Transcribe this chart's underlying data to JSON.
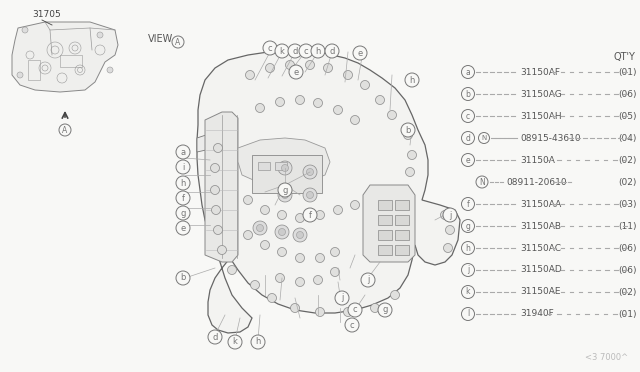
{
  "bg_color": "#f8f8f6",
  "part_number_label": "31705",
  "qty_label": "QT'Y",
  "watermark": "<3 7000^",
  "legend_items": [
    {
      "key": "a",
      "part": "31150AF",
      "qty": "(01)",
      "N_prefix": false
    },
    {
      "key": "b",
      "part": "31150AG",
      "qty": "(06)",
      "N_prefix": false
    },
    {
      "key": "c",
      "part": "31150AH",
      "qty": "(05)",
      "N_prefix": false
    },
    {
      "key": "d",
      "part": "08915-43610",
      "qty": "(04)",
      "N_prefix": true
    },
    {
      "key": "e",
      "part": "31150A",
      "qty": "(02)",
      "N_prefix": false
    },
    {
      "key": "N_only",
      "part": "08911-20610",
      "qty": "(02)",
      "N_prefix": false
    },
    {
      "key": "f",
      "part": "31150AA",
      "qty": "(03)",
      "N_prefix": false
    },
    {
      "key": "g",
      "part": "31150AB",
      "qty": "(11)",
      "N_prefix": false
    },
    {
      "key": "h",
      "part": "31150AC",
      "qty": "(06)",
      "N_prefix": false
    },
    {
      "key": "j",
      "part": "31150AD",
      "qty": "(06)",
      "N_prefix": false
    },
    {
      "key": "k",
      "part": "31150AE",
      "qty": "(02)",
      "N_prefix": false
    },
    {
      "key": "l",
      "part": "31940F",
      "qty": "(01)",
      "N_prefix": false
    }
  ],
  "edge_color": "#888888",
  "line_color": "#aaaaaa",
  "circle_color": "#777777",
  "text_color": "#555555",
  "dark_color": "#444444",
  "part_img_color": "#999999"
}
